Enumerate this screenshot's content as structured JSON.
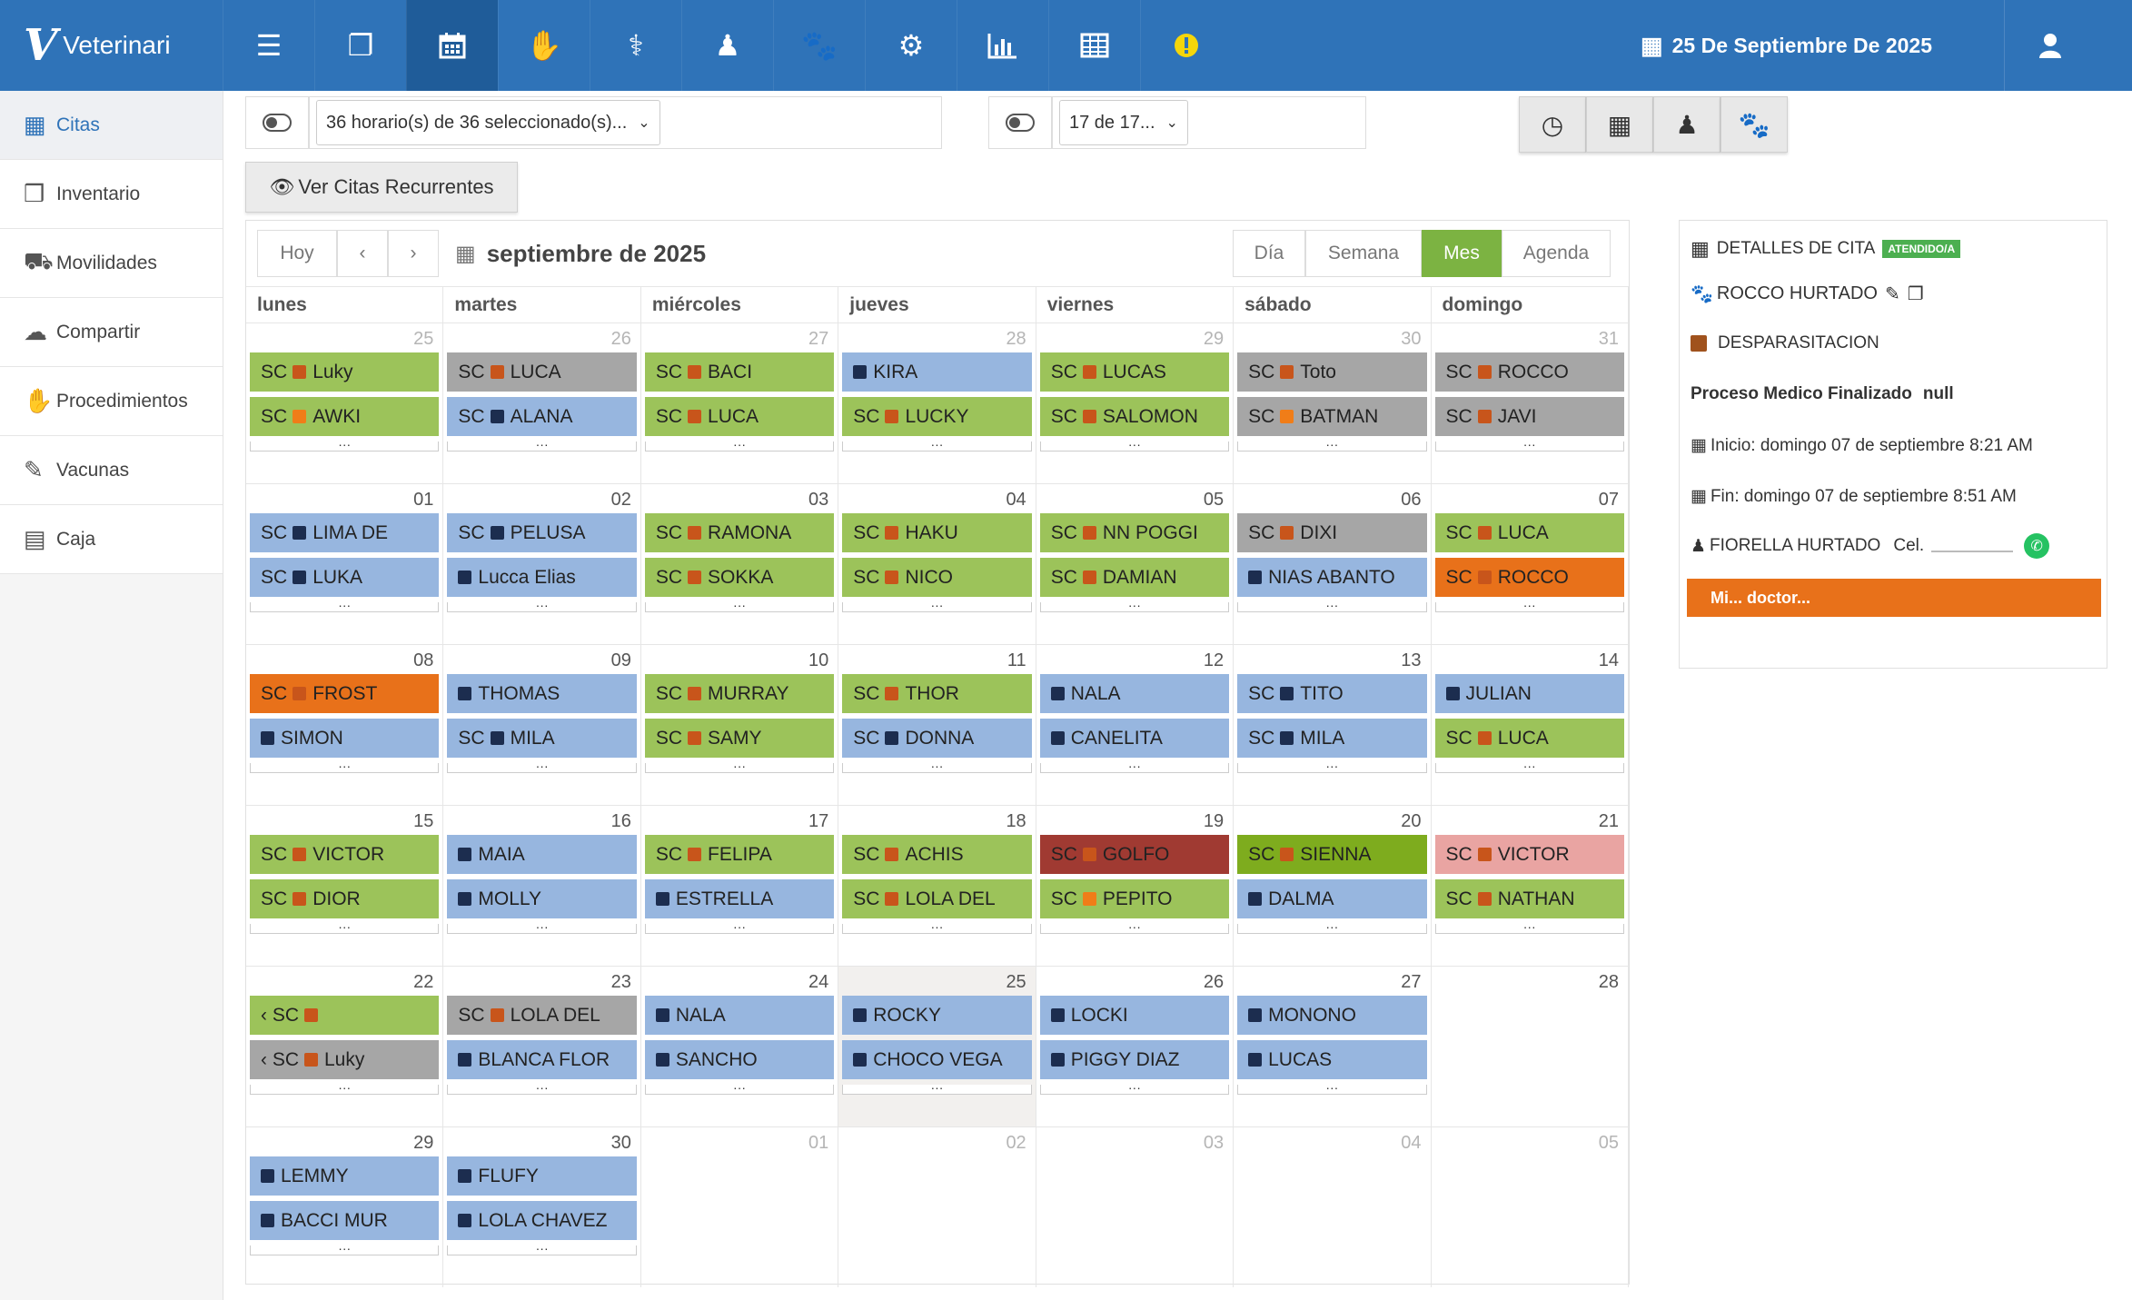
{
  "app": {
    "brand": "Veterinari"
  },
  "topbar": {
    "icons": [
      "menu-icon",
      "documents-icon",
      "calendar-icon",
      "handshake-icon",
      "stethoscope-icon",
      "person-icon",
      "paw-icon",
      "cogs-icon",
      "bar-chart-icon",
      "table-icon",
      "alert-icon"
    ],
    "date": "25 De Septiembre De 2025"
  },
  "sidebar": {
    "items": [
      {
        "label": "Citas",
        "icon": "calendar-icon"
      },
      {
        "label": "Inventario",
        "icon": "cubes-icon"
      },
      {
        "label": "Movilidades",
        "icon": "truck-icon"
      },
      {
        "label": "Compartir",
        "icon": "cloud-icon"
      },
      {
        "label": "Procedimientos",
        "icon": "hand-icon"
      },
      {
        "label": "Vacunas",
        "icon": "syringe-icon"
      },
      {
        "label": "Caja",
        "icon": "calculator-icon"
      }
    ]
  },
  "filters": {
    "schedules": "36 horario(s) de 36 seleccionado(s)...",
    "secondary": "17 de 17..."
  },
  "recurrent_button": "Ver Citas Recurrentes",
  "calendar": {
    "today_label": "Hoy",
    "prev": "‹",
    "next": "›",
    "title": "septiembre de 2025",
    "views": [
      "Día",
      "Semana",
      "Mes",
      "Agenda"
    ],
    "active_view": "Mes",
    "weekdays": [
      "lunes",
      "martes",
      "miércoles",
      "jueves",
      "viernes",
      "sábado",
      "domingo"
    ],
    "colors": {
      "green": "#9cc35a",
      "blue": "#97b6df",
      "gray": "#a6a6a6",
      "orange": "#e8711a",
      "red": "#a03a32",
      "olive": "#7eac1e",
      "pink": "#e9a4a2",
      "sq_orange": "#c8551b",
      "sq_navy": "#1c2d4f",
      "sq_bright": "#f07d18"
    },
    "weeks": [
      [
        {
          "num": "25",
          "other": true,
          "events": [
            {
              "sc": "SC",
              "sq": "sq_orange",
              "name": "Luky",
              "bg": "green"
            },
            {
              "sc": "SC",
              "sq": "sq_bright",
              "name": "AWKI",
              "bg": "green"
            }
          ]
        },
        {
          "num": "26",
          "other": true,
          "events": [
            {
              "sc": "SC",
              "sq": "sq_orange",
              "name": "LUCA",
              "bg": "gray"
            },
            {
              "sc": "SC",
              "sq": "sq_navy",
              "name": "ALANA",
              "bg": "blue"
            }
          ]
        },
        {
          "num": "27",
          "other": true,
          "events": [
            {
              "sc": "SC",
              "sq": "sq_orange",
              "name": "BACI",
              "bg": "green"
            },
            {
              "sc": "SC",
              "sq": "sq_orange",
              "name": "LUCA",
              "bg": "green"
            }
          ]
        },
        {
          "num": "28",
          "other": true,
          "events": [
            {
              "sc": "",
              "sq": "sq_navy",
              "name": "KIRA",
              "bg": "blue"
            },
            {
              "sc": "SC",
              "sq": "sq_orange",
              "name": "LUCKY",
              "bg": "green"
            }
          ]
        },
        {
          "num": "29",
          "other": true,
          "events": [
            {
              "sc": "SC",
              "sq": "sq_orange",
              "name": "LUCAS",
              "bg": "green"
            },
            {
              "sc": "SC",
              "sq": "sq_orange",
              "name": "SALOMON",
              "bg": "green"
            }
          ]
        },
        {
          "num": "30",
          "other": true,
          "events": [
            {
              "sc": "SC",
              "sq": "sq_orange",
              "name": "Toto",
              "bg": "gray"
            },
            {
              "sc": "SC",
              "sq": "sq_bright",
              "name": "BATMAN",
              "bg": "gray"
            }
          ]
        },
        {
          "num": "31",
          "other": true,
          "events": [
            {
              "sc": "SC",
              "sq": "sq_orange",
              "name": "ROCCO",
              "bg": "gray"
            },
            {
              "sc": "SC",
              "sq": "sq_orange",
              "name": "JAVI",
              "bg": "gray"
            }
          ]
        }
      ],
      [
        {
          "num": "01",
          "events": [
            {
              "sc": "SC",
              "sq": "sq_navy",
              "name": "LIMA DE",
              "bg": "blue"
            },
            {
              "sc": "SC",
              "sq": "sq_navy",
              "name": "LUKA",
              "bg": "blue"
            }
          ]
        },
        {
          "num": "02",
          "events": [
            {
              "sc": "SC",
              "sq": "sq_navy",
              "name": "PELUSA",
              "bg": "blue"
            },
            {
              "sc": "",
              "sq": "sq_navy",
              "name": "Lucca Elias",
              "bg": "blue"
            }
          ]
        },
        {
          "num": "03",
          "events": [
            {
              "sc": "SC",
              "sq": "sq_orange",
              "name": "RAMONA",
              "bg": "green"
            },
            {
              "sc": "SC",
              "sq": "sq_orange",
              "name": "SOKKA",
              "bg": "green"
            }
          ]
        },
        {
          "num": "04",
          "events": [
            {
              "sc": "SC",
              "sq": "sq_orange",
              "name": "HAKU",
              "bg": "green"
            },
            {
              "sc": "SC",
              "sq": "sq_orange",
              "name": "NICO",
              "bg": "green"
            }
          ]
        },
        {
          "num": "05",
          "events": [
            {
              "sc": "SC",
              "sq": "sq_orange",
              "name": "NN POGGI",
              "bg": "green"
            },
            {
              "sc": "SC",
              "sq": "sq_orange",
              "name": "DAMIAN",
              "bg": "green"
            }
          ]
        },
        {
          "num": "06",
          "events": [
            {
              "sc": "SC",
              "sq": "sq_orange",
              "name": "DIXI",
              "bg": "gray"
            },
            {
              "sc": "",
              "sq": "sq_navy",
              "name": "NIAS ABANTO",
              "bg": "blue"
            }
          ]
        },
        {
          "num": "07",
          "events": [
            {
              "sc": "SC",
              "sq": "sq_orange",
              "name": "LUCA",
              "bg": "green"
            },
            {
              "sc": "SC",
              "sq": "sq_orange",
              "name": "ROCCO",
              "bg": "orange"
            }
          ]
        }
      ],
      [
        {
          "num": "08",
          "events": [
            {
              "sc": "SC",
              "sq": "sq_orange",
              "name": "FROST",
              "bg": "orange"
            },
            {
              "sc": "",
              "sq": "sq_navy",
              "name": "SIMON",
              "bg": "blue"
            }
          ]
        },
        {
          "num": "09",
          "events": [
            {
              "sc": "",
              "sq": "sq_navy",
              "name": "THOMAS",
              "bg": "blue"
            },
            {
              "sc": "SC",
              "sq": "sq_navy",
              "name": "MILA",
              "bg": "blue"
            }
          ]
        },
        {
          "num": "10",
          "events": [
            {
              "sc": "SC",
              "sq": "sq_orange",
              "name": "MURRAY",
              "bg": "green"
            },
            {
              "sc": "SC",
              "sq": "sq_orange",
              "name": "SAMY",
              "bg": "green"
            }
          ]
        },
        {
          "num": "11",
          "events": [
            {
              "sc": "SC",
              "sq": "sq_orange",
              "name": "THOR",
              "bg": "green"
            },
            {
              "sc": "SC",
              "sq": "sq_navy",
              "name": "DONNA",
              "bg": "blue"
            }
          ]
        },
        {
          "num": "12",
          "events": [
            {
              "sc": "",
              "sq": "sq_navy",
              "name": "NALA",
              "bg": "blue"
            },
            {
              "sc": "",
              "sq": "sq_navy",
              "name": "CANELITA",
              "bg": "blue"
            }
          ]
        },
        {
          "num": "13",
          "events": [
            {
              "sc": "SC",
              "sq": "sq_navy",
              "name": "TITO",
              "bg": "blue"
            },
            {
              "sc": "SC",
              "sq": "sq_navy",
              "name": "MILA",
              "bg": "blue"
            }
          ]
        },
        {
          "num": "14",
          "events": [
            {
              "sc": "",
              "sq": "sq_navy",
              "name": "JULIAN",
              "bg": "blue"
            },
            {
              "sc": "SC",
              "sq": "sq_orange",
              "name": "LUCA",
              "bg": "green"
            }
          ]
        }
      ],
      [
        {
          "num": "15",
          "events": [
            {
              "sc": "SC",
              "sq": "sq_orange",
              "name": "VICTOR",
              "bg": "green"
            },
            {
              "sc": "SC",
              "sq": "sq_orange",
              "name": "DIOR",
              "bg": "green"
            }
          ]
        },
        {
          "num": "16",
          "events": [
            {
              "sc": "",
              "sq": "sq_navy",
              "name": "MAIA",
              "bg": "blue"
            },
            {
              "sc": "",
              "sq": "sq_navy",
              "name": "MOLLY",
              "bg": "blue"
            }
          ]
        },
        {
          "num": "17",
          "events": [
            {
              "sc": "SC",
              "sq": "sq_orange",
              "name": "FELIPA",
              "bg": "green"
            },
            {
              "sc": "",
              "sq": "sq_navy",
              "name": "ESTRELLA",
              "bg": "blue"
            }
          ]
        },
        {
          "num": "18",
          "events": [
            {
              "sc": "SC",
              "sq": "sq_orange",
              "name": "ACHIS",
              "bg": "green"
            },
            {
              "sc": "SC",
              "sq": "sq_orange",
              "name": "LOLA DEL",
              "bg": "green"
            }
          ]
        },
        {
          "num": "19",
          "events": [
            {
              "sc": "SC",
              "sq": "sq_orange",
              "name": "GOLFO",
              "bg": "red"
            },
            {
              "sc": "SC",
              "sq": "sq_bright",
              "name": "PEPITO",
              "bg": "green"
            }
          ]
        },
        {
          "num": "20",
          "events": [
            {
              "sc": "SC",
              "sq": "sq_orange",
              "name": "SIENNA",
              "bg": "olive"
            },
            {
              "sc": "",
              "sq": "sq_navy",
              "name": "DALMA",
              "bg": "blue"
            }
          ]
        },
        {
          "num": "21",
          "events": [
            {
              "sc": "SC",
              "sq": "sq_orange",
              "name": "VICTOR",
              "bg": "pink"
            },
            {
              "sc": "SC",
              "sq": "sq_orange",
              "name": "NATHAN",
              "bg": "green"
            }
          ]
        }
      ],
      [
        {
          "num": "22",
          "events": [
            {
              "sc": "‹ SC",
              "sq": "sq_orange",
              "name": "",
              "bg": "green"
            },
            {
              "sc": "‹ SC",
              "sq": "sq_orange",
              "name": "Luky",
              "bg": "gray"
            }
          ]
        },
        {
          "num": "23",
          "events": [
            {
              "sc": "SC",
              "sq": "sq_orange",
              "name": "LOLA DEL",
              "bg": "gray"
            },
            {
              "sc": "",
              "sq": "sq_navy",
              "name": "BLANCA FLOR",
              "bg": "blue"
            }
          ]
        },
        {
          "num": "24",
          "events": [
            {
              "sc": "",
              "sq": "sq_navy",
              "name": "NALA",
              "bg": "blue"
            },
            {
              "sc": "",
              "sq": "sq_navy",
              "name": "SANCHO",
              "bg": "blue"
            }
          ]
        },
        {
          "num": "25",
          "today": true,
          "events": [
            {
              "sc": "",
              "sq": "sq_navy",
              "name": "ROCKY",
              "bg": "blue"
            },
            {
              "sc": "",
              "sq": "sq_navy",
              "name": "CHOCO VEGA",
              "bg": "blue"
            }
          ]
        },
        {
          "num": "26",
          "events": [
            {
              "sc": "",
              "sq": "sq_navy",
              "name": "LOCKI",
              "bg": "blue"
            },
            {
              "sc": "",
              "sq": "sq_navy",
              "name": "PIGGY DIAZ",
              "bg": "blue"
            }
          ]
        },
        {
          "num": "27",
          "events": [
            {
              "sc": "",
              "sq": "sq_navy",
              "name": "MONONO",
              "bg": "blue"
            },
            {
              "sc": "",
              "sq": "sq_navy",
              "name": "LUCAS",
              "bg": "blue"
            }
          ]
        },
        {
          "num": "28",
          "events": []
        }
      ],
      [
        {
          "num": "29",
          "events": [
            {
              "sc": "",
              "sq": "sq_navy",
              "name": "LEMMY",
              "bg": "blue"
            },
            {
              "sc": "",
              "sq": "sq_navy",
              "name": "BACCI MUR",
              "bg": "blue"
            }
          ]
        },
        {
          "num": "30",
          "events": [
            {
              "sc": "",
              "sq": "sq_navy",
              "name": "FLUFY",
              "bg": "blue"
            },
            {
              "sc": "",
              "sq": "sq_navy",
              "name": "LOLA CHAVEZ",
              "bg": "blue"
            }
          ]
        },
        {
          "num": "01",
          "other": true,
          "events": []
        },
        {
          "num": "02",
          "other": true,
          "events": []
        },
        {
          "num": "03",
          "other": true,
          "events": []
        },
        {
          "num": "04",
          "other": true,
          "events": []
        },
        {
          "num": "05",
          "other": true,
          "events": []
        }
      ]
    ]
  },
  "details": {
    "title": "DETALLES DE CITA",
    "badge": "ATENDIDO/A",
    "patient": "ROCCO HURTADO",
    "service": "DESPARASITACION",
    "process_label": "Proceso Medico Finalizado",
    "process_value": "null",
    "start": "Inicio: domingo 07 de septiembre 8:21 AM",
    "end": "Fin: domingo 07 de septiembre 8:51 AM",
    "owner": "FIORELLA HURTADO",
    "phone_label": "Cel.",
    "doctor_bar": "Mi... doctor..."
  }
}
